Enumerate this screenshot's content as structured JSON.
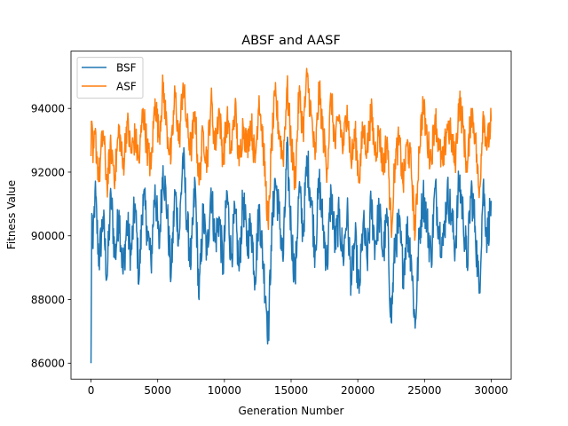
{
  "chart_data": {
    "type": "line",
    "title": "ABSF and AASF",
    "xlabel": "Generation Number",
    "ylabel": "Fitness Value",
    "xlim": [
      -1500,
      31500
    ],
    "ylim": [
      85500,
      95800
    ],
    "xticks": [
      0,
      5000,
      10000,
      15000,
      20000,
      25000,
      30000
    ],
    "xtick_labels": [
      "0",
      "5000",
      "10000",
      "15000",
      "20000",
      "25000",
      "30000"
    ],
    "yticks": [
      86000,
      88000,
      90000,
      92000,
      94000
    ],
    "ytick_labels": [
      "86000",
      "88000",
      "90000",
      "92000",
      "94000"
    ],
    "grid": false,
    "legend_position": "top-left",
    "series": [
      {
        "name": "BSF",
        "color": "#1f77b4",
        "x": [
          0,
          60,
          150,
          300,
          600,
          900,
          1200,
          1500,
          1800,
          2100,
          2400,
          2700,
          3000,
          3300,
          3600,
          3900,
          4200,
          4500,
          4800,
          5100,
          5400,
          5700,
          6000,
          6300,
          6600,
          6900,
          7200,
          7500,
          7800,
          8100,
          8400,
          8700,
          9000,
          9300,
          9600,
          9900,
          10200,
          10500,
          10800,
          11100,
          11400,
          11700,
          12000,
          12300,
          12600,
          12900,
          13100,
          13300,
          13500,
          13800,
          14100,
          14400,
          14700,
          15000,
          15300,
          15600,
          15900,
          16200,
          16500,
          16800,
          17100,
          17400,
          17700,
          18000,
          18300,
          18600,
          18900,
          19200,
          19500,
          19800,
          20100,
          20400,
          20700,
          21000,
          21300,
          21600,
          21900,
          22200,
          22500,
          22800,
          23100,
          23400,
          23700,
          24000,
          24300,
          24600,
          24900,
          25200,
          25500,
          25800,
          26100,
          26400,
          26700,
          27000,
          27300,
          27600,
          27900,
          28200,
          28500,
          28800,
          29100,
          29400,
          29700,
          30000
        ],
        "values": [
          86000,
          90700,
          89600,
          91400,
          89200,
          90600,
          88700,
          91300,
          89300,
          90800,
          88800,
          90400,
          89400,
          91000,
          88600,
          91300,
          90300,
          89100,
          91600,
          89600,
          92200,
          90800,
          88700,
          91400,
          89900,
          92600,
          90400,
          89100,
          91700,
          88000,
          90700,
          89400,
          91500,
          89800,
          90600,
          89000,
          91400,
          89300,
          90700,
          88900,
          91200,
          89700,
          90400,
          88700,
          90900,
          89200,
          88100,
          86900,
          89700,
          91800,
          90700,
          89200,
          92700,
          90200,
          88600,
          91500,
          90100,
          92400,
          91200,
          89500,
          91700,
          90300,
          89100,
          91400,
          89700,
          90600,
          89300,
          90800,
          88600,
          89900,
          88200,
          90400,
          89200,
          91000,
          89700,
          90800,
          89400,
          90600,
          87300,
          89800,
          90300,
          88900,
          90200,
          89400,
          87100,
          89900,
          91300,
          90400,
          89300,
          91500,
          90200,
          89700,
          91400,
          90700,
          89600,
          91800,
          90600,
          89100,
          91500,
          90300,
          88200,
          91600,
          89900,
          91100
        ]
      },
      {
        "name": "ASF",
        "color": "#ff7f0e",
        "x": [
          0,
          60,
          150,
          300,
          600,
          900,
          1200,
          1500,
          1800,
          2100,
          2400,
          2700,
          3000,
          3300,
          3600,
          3900,
          4200,
          4500,
          4800,
          5100,
          5400,
          5700,
          6000,
          6300,
          6600,
          6900,
          7200,
          7500,
          7800,
          8100,
          8400,
          8700,
          9000,
          9300,
          9600,
          9900,
          10200,
          10500,
          10800,
          11100,
          11400,
          11700,
          12000,
          12300,
          12600,
          12900,
          13100,
          13300,
          13500,
          13800,
          14100,
          14400,
          14700,
          15000,
          15300,
          15600,
          15900,
          16200,
          16500,
          16800,
          17100,
          17400,
          17700,
          18000,
          18300,
          18600,
          18900,
          19200,
          19500,
          19800,
          20100,
          20400,
          20700,
          21000,
          21300,
          21600,
          21900,
          22200,
          22500,
          22800,
          23100,
          23400,
          23700,
          24000,
          24300,
          24600,
          24900,
          25200,
          25500,
          25800,
          26100,
          26400,
          26700,
          27000,
          27300,
          27600,
          27900,
          28200,
          28500,
          28800,
          29100,
          29400,
          29700,
          30000
        ],
        "values": [
          92500,
          93600,
          92300,
          93200,
          91800,
          93300,
          91600,
          92800,
          91900,
          93400,
          92100,
          93600,
          92600,
          93100,
          92300,
          94000,
          92800,
          92100,
          94300,
          93100,
          94700,
          93300,
          92400,
          94500,
          92900,
          94800,
          93400,
          92700,
          93900,
          91600,
          93300,
          92300,
          94300,
          92800,
          94000,
          92400,
          93700,
          92600,
          94100,
          92200,
          93500,
          92800,
          93600,
          92300,
          94400,
          92900,
          91600,
          90200,
          92600,
          94400,
          93300,
          92400,
          94700,
          92900,
          91700,
          94500,
          93300,
          95000,
          93800,
          92400,
          94600,
          93200,
          92100,
          94400,
          92800,
          93800,
          92700,
          94100,
          92300,
          93200,
          91800,
          93400,
          92700,
          93900,
          92600,
          93300,
          92100,
          93100,
          90200,
          92400,
          93000,
          91600,
          92900,
          92200,
          90000,
          92800,
          94100,
          93000,
          92400,
          93800,
          92700,
          92200,
          93500,
          93100,
          92300,
          94300,
          93400,
          92000,
          94000,
          93200,
          91200,
          93900,
          92800,
          93600
        ]
      }
    ]
  }
}
